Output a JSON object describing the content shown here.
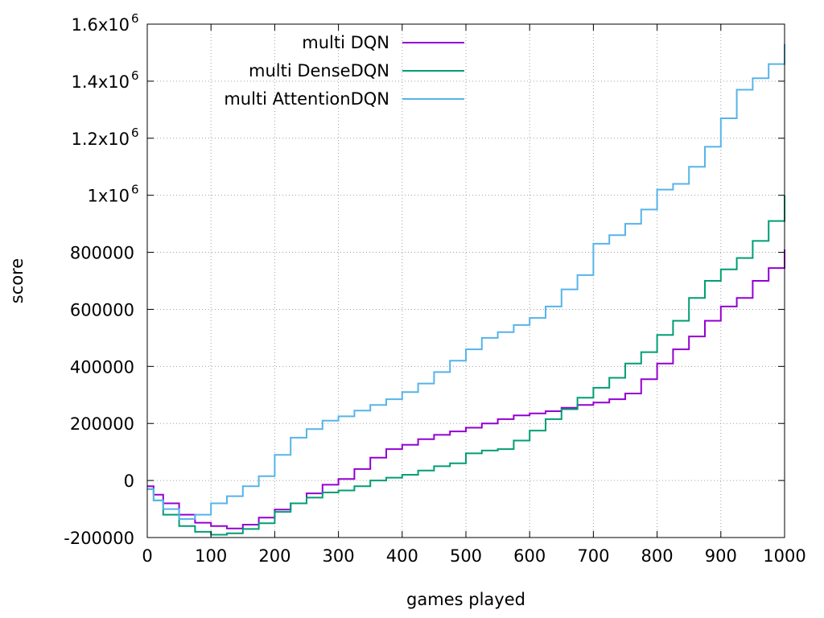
{
  "chart_data": {
    "type": "line",
    "title": "",
    "xlabel": "games played",
    "ylabel": "score",
    "xlim": [
      0,
      1000
    ],
    "ylim": [
      -200000,
      1600000
    ],
    "grid": true,
    "legend_position": "top-left",
    "x_ticks": [
      {
        "value": 0,
        "label": "0"
      },
      {
        "value": 100,
        "label": "100"
      },
      {
        "value": 200,
        "label": "200"
      },
      {
        "value": 300,
        "label": "300"
      },
      {
        "value": 400,
        "label": "400"
      },
      {
        "value": 500,
        "label": "500"
      },
      {
        "value": 600,
        "label": "600"
      },
      {
        "value": 700,
        "label": "700"
      },
      {
        "value": 800,
        "label": "800"
      },
      {
        "value": 900,
        "label": "900"
      },
      {
        "value": 1000,
        "label": "1000"
      }
    ],
    "y_ticks": [
      {
        "value": -200000,
        "label": "-200000"
      },
      {
        "value": 0,
        "label": "0"
      },
      {
        "value": 200000,
        "label": "200000"
      },
      {
        "value": 400000,
        "label": "400000"
      },
      {
        "value": 600000,
        "label": "600000"
      },
      {
        "value": 800000,
        "label": "800000"
      },
      {
        "value": 1000000,
        "label": "1x10",
        "sup": "6"
      },
      {
        "value": 1200000,
        "label": "1.2x10",
        "sup": "6"
      },
      {
        "value": 1400000,
        "label": "1.4x10",
        "sup": "6"
      },
      {
        "value": 1600000,
        "label": "1.6x10",
        "sup": "6"
      }
    ],
    "series": [
      {
        "name": "multi DQN",
        "color": "#9400d3",
        "x": [
          0,
          10,
          25,
          50,
          75,
          100,
          125,
          150,
          175,
          200,
          225,
          250,
          275,
          300,
          325,
          350,
          375,
          400,
          425,
          450,
          475,
          500,
          525,
          550,
          575,
          600,
          625,
          650,
          675,
          700,
          725,
          750,
          775,
          800,
          825,
          850,
          875,
          900,
          925,
          950,
          975,
          1000
        ],
        "y": [
          -20000,
          -50000,
          -80000,
          -120000,
          -148000,
          -160000,
          -168000,
          -155000,
          -130000,
          -102000,
          -80000,
          -45000,
          -15000,
          5000,
          40000,
          80000,
          110000,
          125000,
          145000,
          160000,
          172000,
          185000,
          200000,
          215000,
          228000,
          235000,
          243000,
          255000,
          265000,
          273000,
          285000,
          305000,
          355000,
          410000,
          460000,
          505000,
          560000,
          610000,
          640000,
          700000,
          745000,
          810000
        ]
      },
      {
        "name": "multi DenseDQN",
        "color": "#009e73",
        "x": [
          0,
          10,
          25,
          50,
          75,
          100,
          125,
          150,
          175,
          200,
          225,
          250,
          275,
          300,
          325,
          350,
          375,
          400,
          425,
          450,
          475,
          500,
          525,
          550,
          575,
          600,
          625,
          650,
          675,
          700,
          725,
          750,
          775,
          800,
          825,
          850,
          875,
          900,
          925,
          950,
          975,
          1000
        ],
        "y": [
          -30000,
          -70000,
          -120000,
          -160000,
          -180000,
          -190000,
          -185000,
          -170000,
          -150000,
          -110000,
          -80000,
          -60000,
          -42000,
          -35000,
          -20000,
          0,
          10000,
          20000,
          35000,
          50000,
          60000,
          95000,
          105000,
          110000,
          140000,
          175000,
          215000,
          250000,
          290000,
          325000,
          360000,
          410000,
          450000,
          510000,
          560000,
          640000,
          700000,
          740000,
          780000,
          840000,
          910000,
          1000000
        ]
      },
      {
        "name": "multi AttentionDQN",
        "color": "#56b4e9",
        "x": [
          0,
          10,
          25,
          50,
          75,
          100,
          125,
          150,
          175,
          200,
          225,
          250,
          275,
          300,
          325,
          350,
          375,
          400,
          425,
          450,
          475,
          500,
          525,
          550,
          575,
          600,
          625,
          650,
          675,
          700,
          725,
          750,
          775,
          800,
          825,
          850,
          875,
          900,
          925,
          950,
          975,
          1000
        ],
        "y": [
          -30000,
          -70000,
          -100000,
          -135000,
          -120000,
          -80000,
          -55000,
          -20000,
          15000,
          90000,
          150000,
          180000,
          210000,
          225000,
          245000,
          265000,
          285000,
          310000,
          340000,
          380000,
          420000,
          460000,
          500000,
          520000,
          545000,
          570000,
          610000,
          670000,
          720000,
          830000,
          860000,
          900000,
          950000,
          1020000,
          1040000,
          1100000,
          1170000,
          1270000,
          1370000,
          1410000,
          1460000,
          1530000
        ]
      }
    ]
  }
}
